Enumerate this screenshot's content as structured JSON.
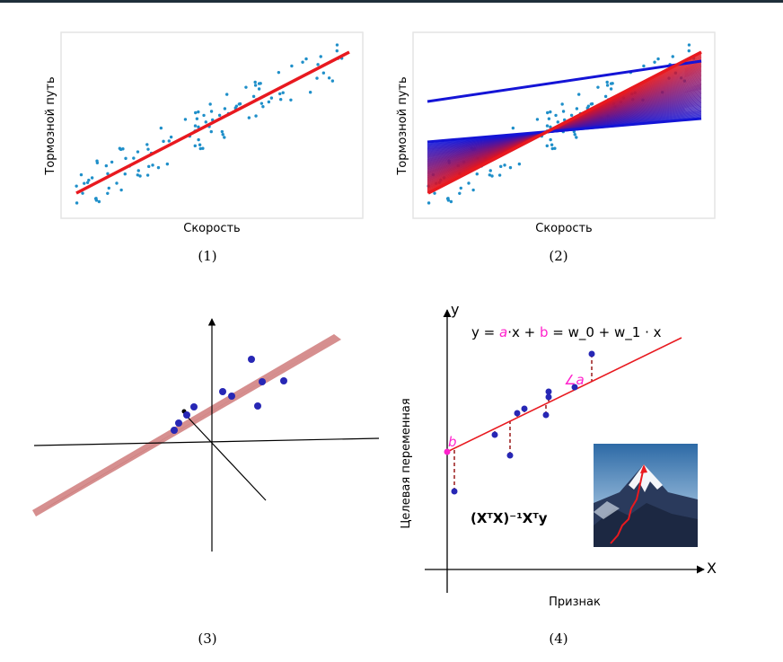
{
  "panels": [
    {
      "caption": "(1)",
      "xlabel": "Скорость",
      "ylabel": "Тормозной путь"
    },
    {
      "caption": "(2)",
      "xlabel": "Скорость",
      "ylabel": "Тормозной путь"
    },
    {
      "caption": "(3)"
    },
    {
      "caption": "(4)",
      "xlabel": "Признак",
      "ylabel": "Целевая переменная",
      "x_axis": "X",
      "y_axis": "y",
      "equation": {
        "lhs": "y = ",
        "a": "a",
        "dot_x": "·x",
        "plus": " + ",
        "b": "b",
        "rhs": " = w_0 + w_1 · x"
      },
      "angle_label": "∠a",
      "intercept_label": "b",
      "normal_eq": "(XᵀX)⁻¹Xᵀy"
    }
  ],
  "colors": {
    "points": "#1f8fc9",
    "fit": "#e8191f",
    "lines": "#1414d6",
    "magenta": "#ff22cc",
    "plane": "#c86a6a",
    "dots": "#2727b5"
  }
}
